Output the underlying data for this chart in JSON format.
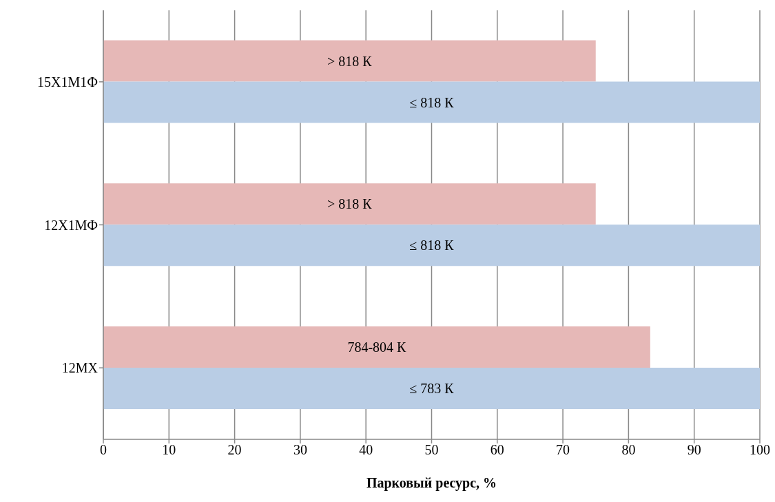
{
  "chart_data": {
    "type": "bar",
    "orientation": "horizontal",
    "xlabel": "Парковый ресурс, %",
    "categories": [
      "15Х1М1Ф",
      "12Х1МФ",
      "12МХ"
    ],
    "series": [
      {
        "color": "#e6b8b7",
        "values": [
          75,
          75,
          83.3
        ],
        "value_labels": [
          "> 818 К",
          "> 818 К",
          "784-804 К"
        ]
      },
      {
        "color": "#b9cde5",
        "values": [
          100,
          100,
          100
        ],
        "value_labels": [
          "≤ 818 К",
          "≤ 818 К",
          "≤ 783 К"
        ]
      }
    ],
    "xlim": [
      0,
      100
    ],
    "xticks": [
      0,
      10,
      20,
      30,
      40,
      50,
      60,
      70,
      80,
      90,
      100
    ],
    "grid": "x",
    "legend": false
  }
}
